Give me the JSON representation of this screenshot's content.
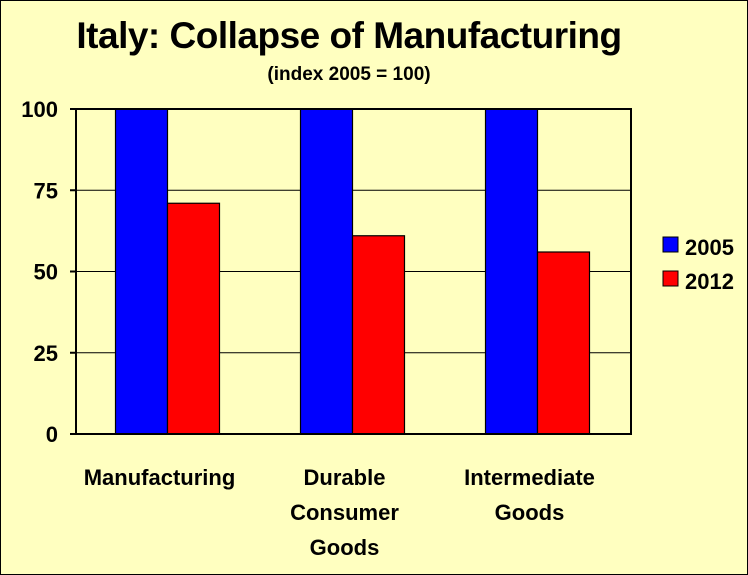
{
  "chart_data": {
    "type": "bar",
    "title": "Italy: Collapse of Manufacturing",
    "subtitle": "(index 2005 = 100)",
    "categories": [
      [
        "Manufacturing"
      ],
      [
        "Durable",
        "Consumer",
        "Goods"
      ],
      [
        "Intermediate",
        "Goods"
      ]
    ],
    "series": [
      {
        "name": "2005",
        "values": [
          100,
          100,
          100
        ],
        "color": "#0000ff"
      },
      {
        "name": "2012",
        "values": [
          71,
          61,
          56
        ],
        "color": "#ff0000"
      }
    ],
    "ylim": [
      0,
      100
    ],
    "yticks": [
      0,
      25,
      50,
      75,
      100
    ],
    "grid": true,
    "legend_position": "right",
    "plot_background": "#ffffc0"
  }
}
